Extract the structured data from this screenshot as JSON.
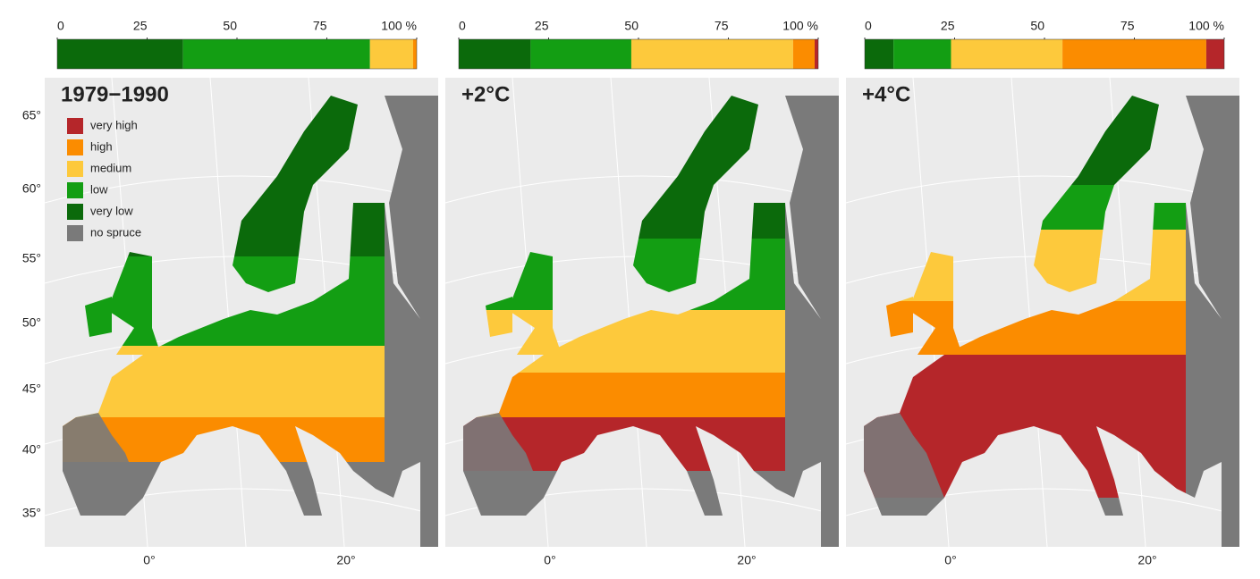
{
  "panels": [
    {
      "title": "1979−1990",
      "shares": [
        35,
        52,
        12,
        1,
        0
      ]
    },
    {
      "title": "+2°C",
      "shares": [
        20,
        28,
        45,
        6,
        1
      ]
    },
    {
      "title": "+4°C",
      "shares": [
        8,
        16,
        31,
        40,
        5
      ]
    }
  ],
  "scale_ticks": [
    0,
    25,
    50,
    75,
    {
      "value": 100,
      "label": "100 %"
    }
  ],
  "legend": [
    {
      "name": "very high",
      "color": "#b5262a"
    },
    {
      "name": "high",
      "color": "#fb8c00"
    },
    {
      "name": "medium",
      "color": "#fdc93c"
    },
    {
      "name": "low",
      "color": "#139e13"
    },
    {
      "name": "very low",
      "color": "#0b6a0b"
    },
    {
      "name": "no spruce",
      "color": "#7a7a7a"
    }
  ],
  "lat_labels": [
    "65°",
    "60°",
    "55°",
    "50°",
    "45°",
    "40°",
    "35°"
  ],
  "lon_labels": [
    "0°",
    "20°"
  ]
}
